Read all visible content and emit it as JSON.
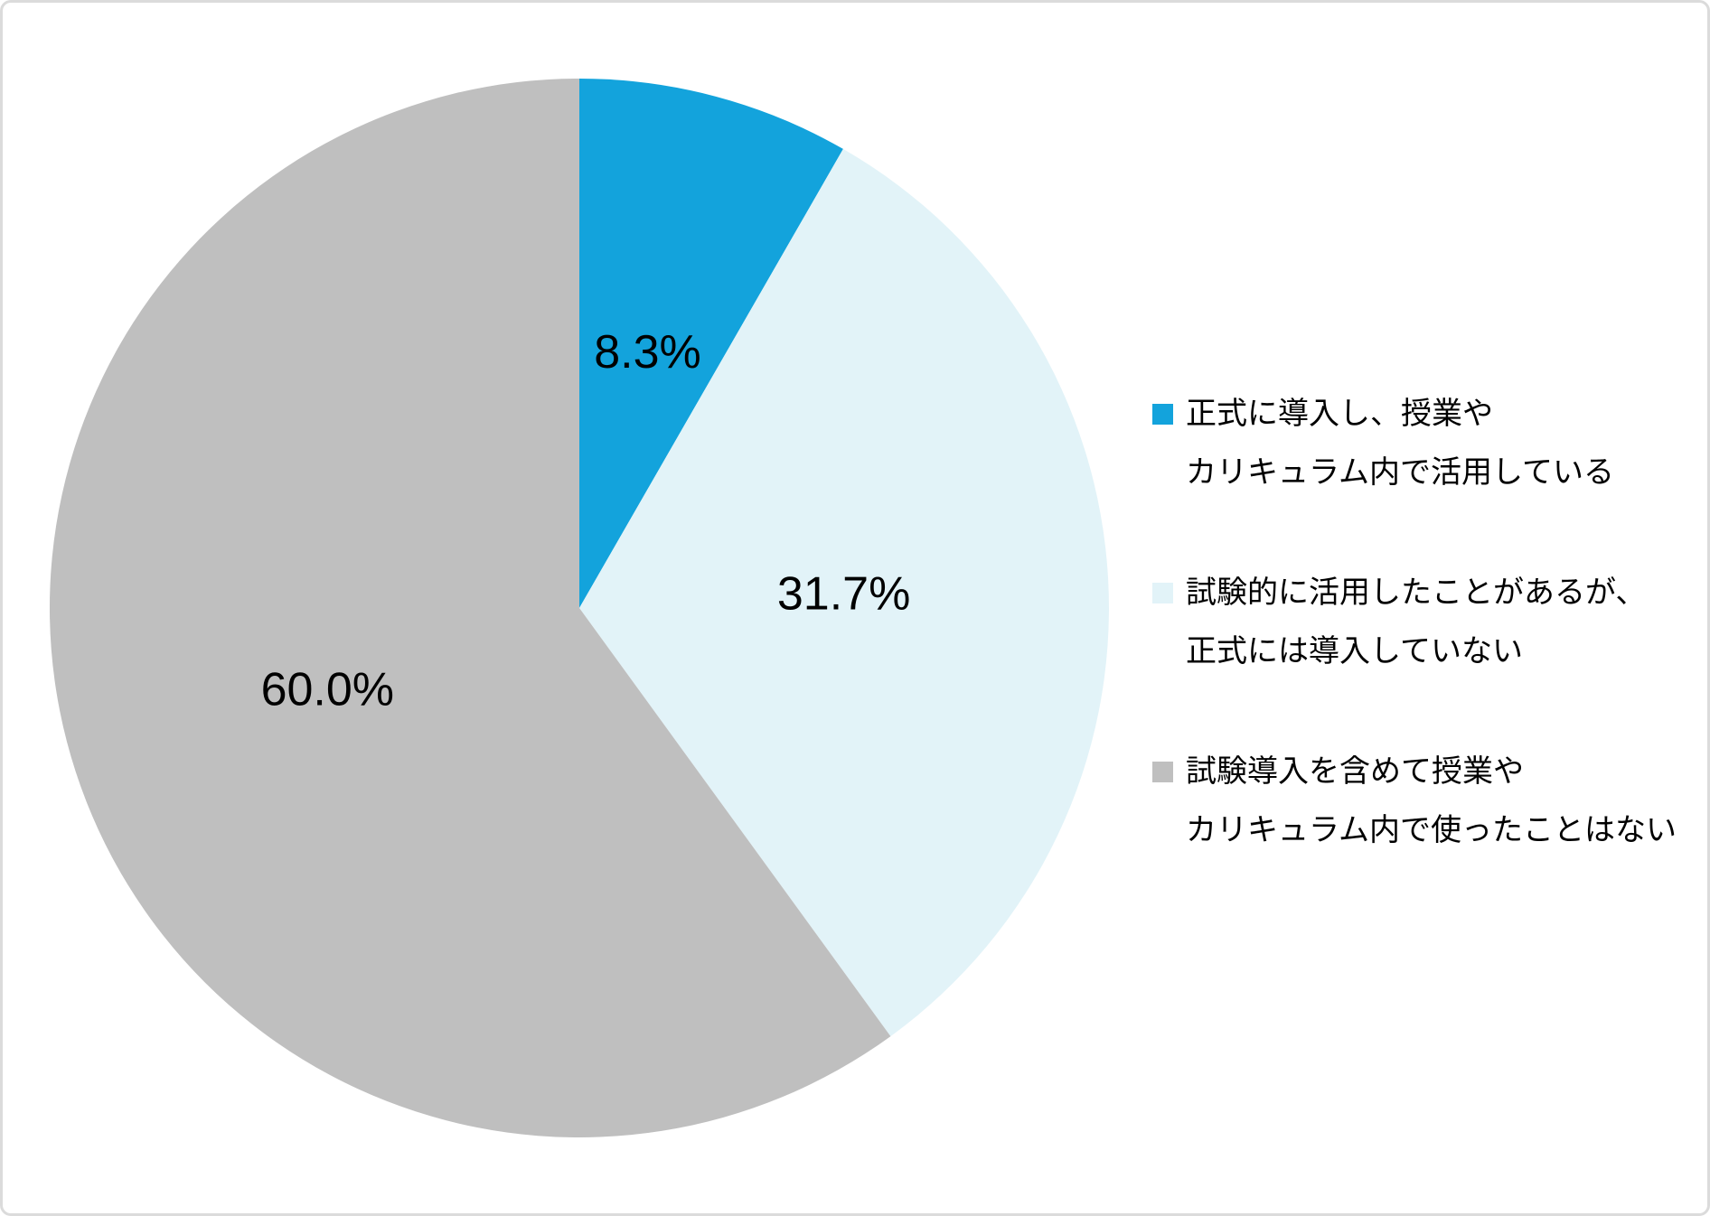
{
  "chart_data": {
    "type": "pie",
    "title": "",
    "start_angle_deg": 0,
    "direction": "clockwise",
    "legend_position": "right",
    "data_label_format": "percent",
    "data_label_color": "#000000",
    "background_color": "#FFFFFF",
    "canvas_border_color": "#DBDBDB",
    "slices": [
      {
        "legend_lines": [
          "正式に導入し、授業や",
          "カリキュラム内で活用している"
        ],
        "value_percent": 8.3,
        "data_label": "8.3%",
        "color": "#13A3DC"
      },
      {
        "legend_lines": [
          "試験的に活用したことがあるが、",
          "正式には導入していない"
        ],
        "value_percent": 31.7,
        "data_label": "31.7%",
        "color": "#E2F3F8"
      },
      {
        "legend_lines": [
          "試験導入を含めて授業や",
          "カリキュラム内で使ったことはない"
        ],
        "value_percent": 60.0,
        "data_label": "60.0%",
        "color": "#BFBFBF"
      }
    ]
  }
}
